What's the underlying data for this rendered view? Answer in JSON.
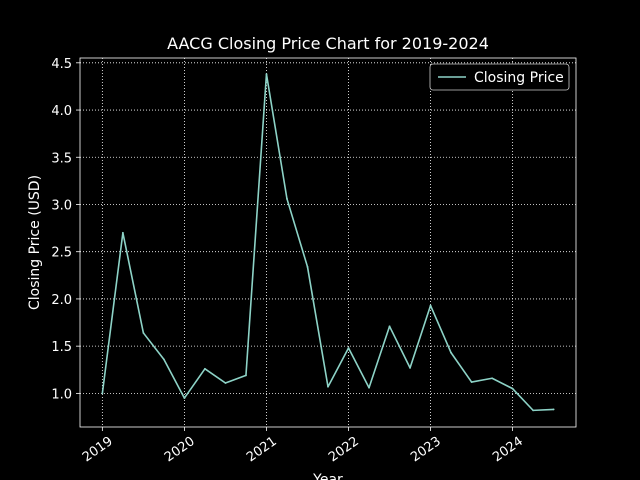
{
  "chart_data": {
    "type": "line",
    "title": "AACG Closing Price Chart for 2019-2024",
    "xlabel": "Year",
    "ylabel": "Closing Price (USD)",
    "grid": true,
    "grid_style": "dotted",
    "legend_position": "top-right",
    "colors": {
      "background": "#000000",
      "axes": "#ffffff",
      "grid": "#ffffff",
      "line": "#8dd3c7"
    },
    "xlim": [
      2018.7275,
      2024.7725
    ],
    "ylim": [
      0.644,
      4.551
    ],
    "x_ticks": [
      2019,
      2020,
      2021,
      2022,
      2023,
      2024
    ],
    "x_tick_labels": [
      "2019",
      "2020",
      "2021",
      "2022",
      "2023",
      "2024"
    ],
    "y_ticks": [
      1.0,
      1.5,
      2.0,
      2.5,
      3.0,
      3.5,
      4.0,
      4.5
    ],
    "y_tick_labels": [
      "1.0",
      "1.5",
      "2.0",
      "2.5",
      "3.0",
      "3.5",
      "4.0",
      "4.5"
    ],
    "series": [
      {
        "name": "Closing Price",
        "x": [
          2019.0,
          2019.25,
          2019.5,
          2019.75,
          2020.0,
          2020.25,
          2020.5,
          2020.75,
          2021.0,
          2021.25,
          2021.5,
          2021.75,
          2022.0,
          2022.25,
          2022.5,
          2022.75,
          2023.0,
          2023.25,
          2023.5,
          2023.75,
          2024.0,
          2024.25,
          2024.5
        ],
        "values": [
          1.0,
          2.7,
          1.64,
          1.36,
          0.95,
          1.26,
          1.11,
          1.19,
          4.38,
          3.06,
          2.34,
          1.07,
          1.48,
          1.06,
          1.71,
          1.27,
          1.93,
          1.43,
          1.12,
          1.16,
          1.05,
          0.82,
          0.83
        ]
      }
    ]
  }
}
